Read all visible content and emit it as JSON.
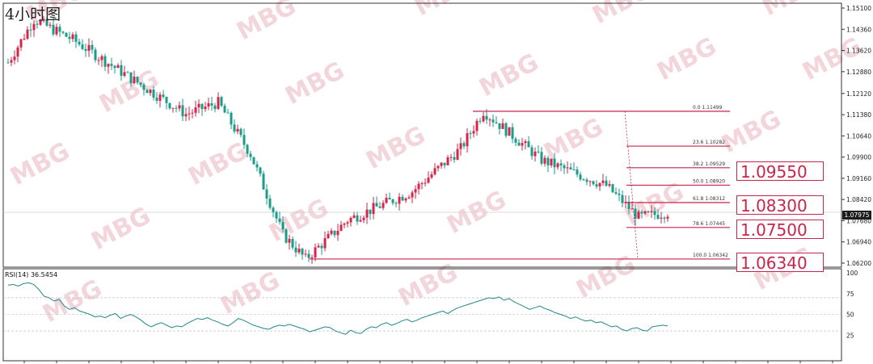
{
  "chart_title": "4小时图",
  "watermark": "MBG",
  "colors": {
    "bull": "#d6244a",
    "bear": "#1a9c8a",
    "fib_line": "#c8254a",
    "rsi_line": "#1f8a8a",
    "axis_text": "#222222",
    "current_price_bg": "#1c1c1c"
  },
  "chart_data": [
    {
      "type": "candlestick",
      "title": "4小时图",
      "y_axis_ticks": [
        "1.15100",
        "1.14360",
        "1.13620",
        "1.12880",
        "1.12120",
        "1.11380",
        "1.10640",
        "1.09900",
        "1.09160",
        "1.08420",
        "1.07680",
        "1.06940",
        "1.06200"
      ],
      "ylim": [
        1.062,
        1.151
      ],
      "current_price": "1.07975",
      "trend_summary": [
        {
          "segment": "decline",
          "from": 1.147,
          "to": 1.0634
        },
        {
          "segment": "rally",
          "from": 1.0634,
          "to": 1.11499
        },
        {
          "segment": "decline",
          "from": 1.11499,
          "to": 1.0797
        }
      ],
      "fibonacci": [
        {
          "label": "0.0",
          "value": "1.11499"
        },
        {
          "label": "23.6",
          "value": "1.10282"
        },
        {
          "label": "38.2",
          "value": "1.09529"
        },
        {
          "label": "50.0",
          "value": "1.08920"
        },
        {
          "label": "61.8",
          "value": "1.08312"
        },
        {
          "label": "78.6",
          "value": "1.07445"
        },
        {
          "label": "100.0",
          "value": "1.06342"
        }
      ],
      "key_levels": [
        "1.09550",
        "1.08300",
        "1.07500",
        "1.06340"
      ]
    },
    {
      "type": "line",
      "title": "RSI(14) 36.5454",
      "indicator": "RSI(14)",
      "last_value": "36.5454",
      "y_axis_ticks": [
        "100",
        "75",
        "50",
        "25"
      ],
      "ylim": [
        0,
        100
      ],
      "levels": [
        30,
        50,
        70
      ],
      "values": [
        85,
        86,
        84,
        87,
        88,
        86,
        80,
        72,
        70,
        66,
        68,
        60,
        56,
        58,
        54,
        52,
        50,
        47,
        48,
        46,
        49,
        51,
        45,
        48,
        50,
        47,
        43,
        38,
        35,
        38,
        40,
        37,
        34,
        36,
        35,
        39,
        42,
        45,
        44,
        46,
        43,
        41,
        38,
        36,
        40,
        45,
        43,
        40,
        37,
        35,
        33,
        32,
        35,
        37,
        36,
        38,
        36,
        34,
        32,
        29,
        31,
        33,
        35,
        34,
        30,
        28,
        26,
        31,
        28,
        27,
        32,
        35,
        34,
        38,
        40,
        37,
        39,
        42,
        44,
        41,
        43,
        46,
        48,
        50,
        52,
        54,
        51,
        55,
        58,
        60,
        62,
        64,
        66,
        68,
        70,
        69,
        71,
        67,
        69,
        65,
        62,
        59,
        56,
        58,
        60,
        57,
        55,
        52,
        50,
        48,
        45,
        47,
        44,
        42,
        43,
        40,
        41,
        38,
        35,
        36,
        32,
        30,
        33,
        34,
        31,
        30,
        35,
        36,
        37,
        36
      ]
    }
  ]
}
